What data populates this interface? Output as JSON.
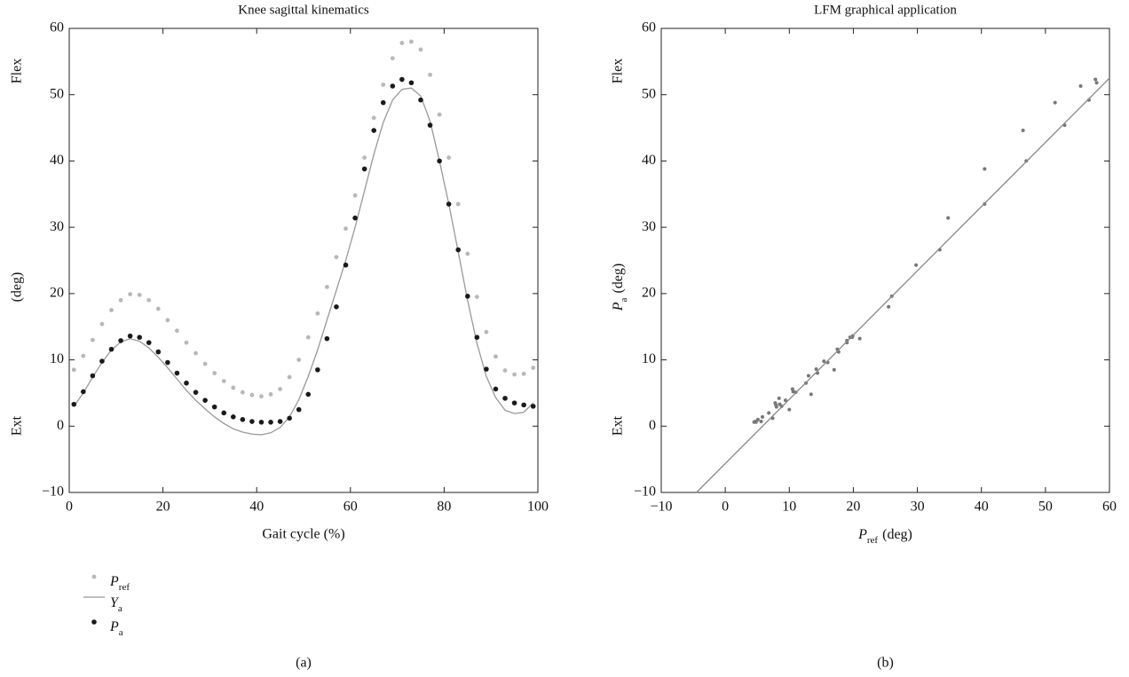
{
  "chart_data": [
    {
      "type": "line",
      "title": "Knee sagittal kinematics",
      "x_label": "Gait cycle (%)",
      "y_label": "(deg)",
      "annotations": [
        "Flex",
        "Ext"
      ],
      "caption": "(a)",
      "legend": "below",
      "xlim": [
        0,
        100
      ],
      "xticks": [
        0,
        20,
        40,
        60,
        80,
        100
      ],
      "ylim": [
        -10,
        60
      ],
      "yticks": [
        {
          "value": -10,
          "label": "−10"
        },
        0,
        10,
        20,
        30,
        40,
        50,
        60
      ],
      "x": [
        1,
        3,
        5,
        7,
        9,
        11,
        13,
        15,
        17,
        19,
        21,
        23,
        25,
        27,
        29,
        31,
        33,
        35,
        37,
        39,
        41,
        43,
        45,
        47,
        49,
        51,
        53,
        55,
        57,
        59,
        61,
        63,
        65,
        67,
        69,
        71,
        73,
        75,
        77,
        79,
        81,
        83,
        85,
        87,
        89,
        91,
        93,
        95,
        97,
        99
      ],
      "series": [
        {
          "name": "P",
          "name_sub": "ref",
          "style": "dots",
          "color": "#b8b8b8",
          "values": [
            8.5,
            10.6,
            13.0,
            15.4,
            17.5,
            19.0,
            19.9,
            19.8,
            19.0,
            17.7,
            16.0,
            14.4,
            12.6,
            11.0,
            9.4,
            8.0,
            6.8,
            5.8,
            5.1,
            4.7,
            4.5,
            4.8,
            5.6,
            7.4,
            10.0,
            13.4,
            17.0,
            21.0,
            25.5,
            29.8,
            34.8,
            40.5,
            46.5,
            51.5,
            55.5,
            57.8,
            58.0,
            56.8,
            53.0,
            47.0,
            40.5,
            33.5,
            26.0,
            19.5,
            14.2,
            10.5,
            8.4,
            7.8,
            7.9,
            8.8
          ]
        },
        {
          "name": "Y",
          "name_sub": "a",
          "style": "line",
          "color": "#999999",
          "values": [
            3.0,
            5.0,
            7.4,
            9.6,
            11.5,
            12.7,
            13.2,
            12.8,
            11.8,
            10.4,
            8.8,
            7.1,
            5.4,
            3.9,
            2.6,
            1.4,
            0.4,
            -0.4,
            -0.9,
            -1.2,
            -1.3,
            -1.0,
            -0.2,
            1.4,
            4.0,
            7.5,
            11.5,
            16.0,
            20.5,
            25.0,
            30.0,
            35.5,
            41.0,
            45.8,
            49.2,
            50.8,
            51.0,
            49.8,
            46.0,
            40.0,
            33.5,
            26.3,
            19.0,
            12.5,
            7.5,
            4.3,
            2.4,
            1.9,
            2.1,
            3.5
          ]
        },
        {
          "name": "P",
          "name_sub": "a",
          "style": "dots",
          "color": "#1a1a1a",
          "values": [
            3.3,
            5.2,
            7.6,
            9.8,
            11.6,
            12.9,
            13.6,
            13.4,
            12.6,
            11.2,
            9.6,
            8.0,
            6.5,
            5.1,
            3.9,
            2.9,
            2.0,
            1.4,
            1.0,
            0.7,
            0.6,
            0.6,
            0.7,
            1.2,
            2.5,
            4.8,
            8.5,
            13.2,
            18.0,
            24.3,
            31.4,
            38.8,
            44.6,
            48.8,
            51.3,
            52.3,
            51.8,
            49.2,
            45.4,
            40.0,
            33.5,
            26.6,
            19.6,
            13.4,
            8.6,
            5.6,
            4.2,
            3.5,
            3.2,
            3.0
          ]
        }
      ]
    },
    {
      "type": "scatter",
      "title": "LFM graphical application",
      "x_label": {
        "main": "P",
        "sub": "ref",
        "unit": "(deg)"
      },
      "y_label": {
        "main": "P",
        "sub": "a",
        "unit": "(deg)"
      },
      "annotations": [
        "Flex",
        "Ext"
      ],
      "caption": "(b)",
      "xlim": [
        -10,
        60
      ],
      "xticks": [
        {
          "value": -10,
          "label": "−10"
        },
        0,
        10,
        20,
        30,
        40,
        50,
        60
      ],
      "ylim": [
        -10,
        60
      ],
      "yticks": [
        {
          "value": -10,
          "label": "−10"
        },
        0,
        10,
        20,
        30,
        40,
        50,
        60
      ],
      "series": [
        {
          "style": "dots",
          "color": "#777777",
          "x": [
            8.5,
            10.6,
            13.0,
            15.4,
            17.5,
            19.0,
            19.9,
            19.8,
            19.0,
            17.7,
            16.0,
            14.4,
            12.6,
            11.0,
            9.4,
            8.0,
            6.8,
            5.8,
            5.1,
            4.7,
            4.5,
            4.8,
            5.6,
            7.4,
            10.0,
            13.4,
            17.0,
            21.0,
            25.5,
            29.8,
            34.8,
            40.5,
            46.5,
            51.5,
            55.5,
            57.8,
            58.0,
            56.8,
            53.0,
            47.0,
            40.5,
            33.5,
            26.0,
            19.5,
            14.2,
            10.5,
            8.4,
            7.8,
            7.9,
            8.8
          ],
          "values": [
            3.3,
            5.2,
            7.6,
            9.8,
            11.6,
            12.9,
            13.6,
            13.4,
            12.6,
            11.2,
            9.6,
            8.0,
            6.5,
            5.1,
            3.9,
            2.9,
            2.0,
            1.4,
            1.0,
            0.7,
            0.6,
            0.6,
            0.7,
            1.2,
            2.5,
            4.8,
            8.5,
            13.2,
            18.0,
            24.3,
            31.4,
            38.8,
            44.6,
            48.8,
            51.3,
            52.3,
            51.8,
            49.2,
            45.4,
            40.0,
            33.5,
            26.6,
            19.6,
            13.4,
            8.6,
            5.6,
            4.2,
            3.5,
            3.2,
            3.0
          ]
        },
        {
          "style": "line",
          "color": "#888888",
          "x": [
            -4.5,
            60
          ],
          "values": [
            -10,
            52.5
          ]
        }
      ]
    }
  ]
}
